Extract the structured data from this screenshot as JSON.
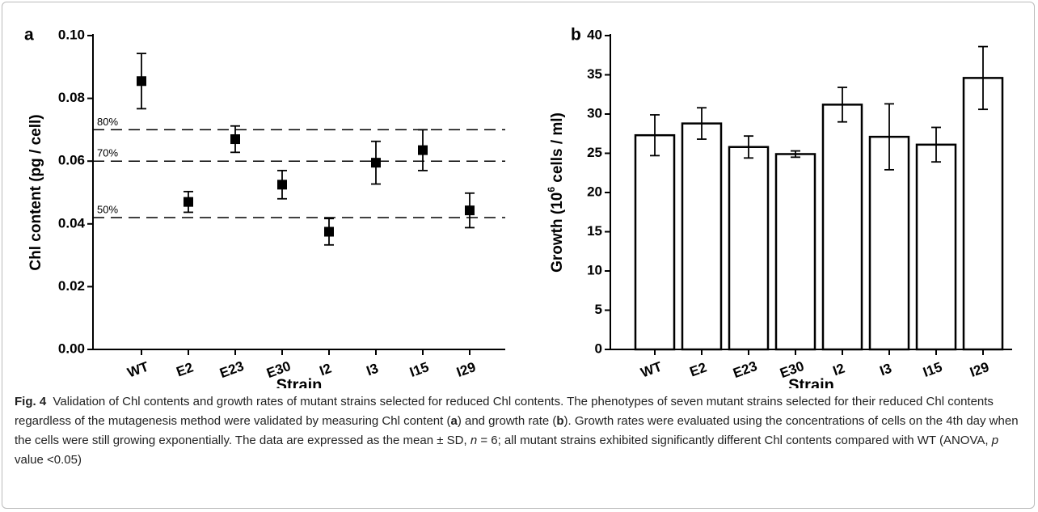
{
  "chart_data": [
    {
      "type": "scatter",
      "panel": "a",
      "x_label": "Strain",
      "y_label": "Chl content (pg / cell)",
      "categories": [
        "WT",
        "E2",
        "E23",
        "E30",
        "I2",
        "I3",
        "I15",
        "I29"
      ],
      "values": [
        0.0855,
        0.047,
        0.067,
        0.0525,
        0.0375,
        0.0595,
        0.0635,
        0.0443
      ],
      "errors": [
        0.0088,
        0.0033,
        0.0042,
        0.0045,
        0.0042,
        0.0068,
        0.0065,
        0.0055
      ],
      "color": "#000000",
      "ylim": [
        0,
        0.1
      ],
      "yticks": [
        {
          "value": 0,
          "label": "0.00"
        },
        0.02,
        0.04,
        0.06,
        0.08,
        {
          "value": 0.1,
          "label": "0.10"
        }
      ],
      "reference_lines": [
        {
          "value": 0.07,
          "label": "80%"
        },
        {
          "value": 0.06,
          "label": "70%"
        },
        {
          "value": 0.042,
          "label": "50%"
        }
      ]
    },
    {
      "type": "bar",
      "panel": "b",
      "x_label": "Strain",
      "y_label": [
        "Growth (10",
        "6",
        " cells / ml)"
      ],
      "categories": [
        "WT",
        "E2",
        "E23",
        "E30",
        "I2",
        "I3",
        "I15",
        "I29"
      ],
      "values": [
        27.3,
        28.8,
        25.8,
        24.9,
        31.2,
        27.1,
        26.1,
        34.6
      ],
      "errors": [
        2.6,
        2.0,
        1.4,
        0.4,
        2.2,
        4.2,
        2.2,
        4.0
      ],
      "color": "#ffffff",
      "ylim": [
        0,
        40
      ],
      "yticks": [
        0,
        5,
        10,
        15,
        20,
        25,
        30,
        35,
        40
      ]
    }
  ],
  "caption": [
    {
      "text": "Fig. 4",
      "style": "bold"
    },
    {
      "text": "  Validation of Chl contents and growth rates of mutant strains selected for reduced Chl contents. The phenotypes of seven mutant strains selected for their reduced Chl contents regardless of the mutagenesis method were validated by measuring Chl content (",
      "style": "normal"
    },
    {
      "text": "a",
      "style": "bold"
    },
    {
      "text": ") and growth rate (",
      "style": "normal"
    },
    {
      "text": "b",
      "style": "bold"
    },
    {
      "text": "). Growth rates were evaluated using the concentrations of cells on the 4th day when the cells were still growing exponentially. The data are expressed as the mean ± SD, ",
      "style": "normal"
    },
    {
      "text": "n",
      "style": "italic"
    },
    {
      "text": " = 6; all mutant strains exhibited significantly different Chl contents compared with WT (ANOVA, ",
      "style": "normal"
    },
    {
      "text": "p",
      "style": "italic"
    },
    {
      "text": " value <0.05)",
      "style": "normal"
    }
  ]
}
